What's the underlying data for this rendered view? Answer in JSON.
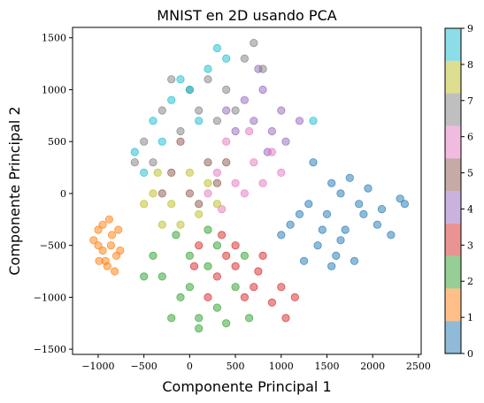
{
  "chart_data": {
    "type": "scatter",
    "title": "MNIST en 2D usando PCA",
    "xlabel": "Componente Principal 1",
    "ylabel": "Componente Principal 2",
    "xlim": [
      -1280,
      2530
    ],
    "ylim": [
      -1550,
      1600
    ],
    "xticks": [
      -1000,
      -500,
      0,
      500,
      1000,
      1500,
      2000,
      2500
    ],
    "yticks": [
      -1500,
      -1000,
      -500,
      0,
      500,
      1000,
      1500
    ],
    "xtick_labels": [
      "−1000",
      "−500",
      "0",
      "500",
      "1000",
      "1500",
      "2000",
      "2500"
    ],
    "ytick_labels": [
      "−1500",
      "−1000",
      "−500",
      "0",
      "500",
      "1000",
      "1500"
    ],
    "grid": false,
    "point_alpha": 0.5,
    "colorbar": {
      "min": 0,
      "max": 9,
      "ticks": [
        "0",
        "1",
        "2",
        "3",
        "4",
        "5",
        "6",
        "7",
        "8",
        "9"
      ],
      "colors": [
        "#1f77b4",
        "#ff7f0e",
        "#2ca02c",
        "#d62728",
        "#9467bd",
        "#8c564b",
        "#e377c2",
        "#7f7f7f",
        "#bcbd22",
        "#17becf"
      ]
    },
    "series": [
      {
        "label_value": 0,
        "color": "#1f77b4",
        "points": [
          [
            1100,
            -300
          ],
          [
            1300,
            -100
          ],
          [
            1500,
            -200
          ],
          [
            1700,
            -350
          ],
          [
            1900,
            -200
          ],
          [
            2100,
            -150
          ],
          [
            2300,
            -50
          ],
          [
            2200,
            -400
          ],
          [
            1600,
            -600
          ],
          [
            1400,
            -500
          ],
          [
            1800,
            -650
          ],
          [
            1250,
            -650
          ],
          [
            1000,
            -400
          ],
          [
            1550,
            100
          ],
          [
            1750,
            150
          ],
          [
            1950,
            50
          ],
          [
            2050,
            -300
          ],
          [
            1650,
            -450
          ],
          [
            1450,
            -350
          ],
          [
            1850,
            -100
          ],
          [
            2350,
            -100
          ],
          [
            1350,
            300
          ],
          [
            1200,
            -200
          ],
          [
            1550,
            -700
          ],
          [
            1650,
            0
          ]
        ]
      },
      {
        "label_value": 1,
        "color": "#ff7f0e",
        "points": [
          [
            -1000,
            -500
          ],
          [
            -950,
            -300
          ],
          [
            -900,
            -700
          ],
          [
            -850,
            -400
          ],
          [
            -800,
            -600
          ],
          [
            -950,
            -550
          ],
          [
            -1050,
            -450
          ],
          [
            -880,
            -250
          ],
          [
            -820,
            -750
          ],
          [
            -920,
            -650
          ],
          [
            -780,
            -350
          ],
          [
            -1000,
            -350
          ],
          [
            -860,
            -500
          ],
          [
            -760,
            -550
          ],
          [
            -990,
            -650
          ]
        ]
      },
      {
        "label_value": 2,
        "color": "#2ca02c",
        "points": [
          [
            -300,
            -800
          ],
          [
            -100,
            -1000
          ],
          [
            100,
            -1200
          ],
          [
            300,
            -1100
          ],
          [
            -200,
            -1200
          ],
          [
            0,
            -900
          ],
          [
            200,
            -700
          ],
          [
            500,
            -900
          ],
          [
            -400,
            -600
          ],
          [
            400,
            -1250
          ],
          [
            650,
            -1200
          ],
          [
            100,
            -1300
          ],
          [
            -500,
            -800
          ],
          [
            300,
            -500
          ],
          [
            0,
            -600
          ],
          [
            600,
            -600
          ],
          [
            -150,
            -400
          ],
          [
            200,
            -350
          ]
        ]
      },
      {
        "label_value": 3,
        "color": "#d62728",
        "points": [
          [
            100,
            -500
          ],
          [
            300,
            -800
          ],
          [
            500,
            -700
          ],
          [
            700,
            -900
          ],
          [
            200,
            -1000
          ],
          [
            400,
            -600
          ],
          [
            600,
            -1000
          ],
          [
            800,
            -600
          ],
          [
            900,
            -1050
          ],
          [
            1000,
            -900
          ],
          [
            1150,
            -1000
          ],
          [
            50,
            -700
          ],
          [
            350,
            -400
          ],
          [
            750,
            -750
          ],
          [
            1050,
            -1200
          ],
          [
            500,
            -500
          ]
        ]
      },
      {
        "label_value": 4,
        "color": "#9467bd",
        "points": [
          [
            600,
            900
          ],
          [
            800,
            1000
          ],
          [
            700,
            700
          ],
          [
            900,
            600
          ],
          [
            1000,
            800
          ],
          [
            500,
            600
          ],
          [
            750,
            1200
          ],
          [
            1050,
            500
          ],
          [
            400,
            800
          ],
          [
            850,
            400
          ],
          [
            1200,
            700
          ]
        ]
      },
      {
        "label_value": 5,
        "color": "#8c564b",
        "points": [
          [
            -200,
            200
          ],
          [
            0,
            0
          ],
          [
            200,
            300
          ],
          [
            -100,
            500
          ],
          [
            300,
            100
          ],
          [
            100,
            -100
          ],
          [
            -300,
            0
          ],
          [
            400,
            300
          ]
        ]
      },
      {
        "label_value": 6,
        "color": "#e377c2",
        "points": [
          [
            300,
            200
          ],
          [
            500,
            100
          ],
          [
            700,
            300
          ],
          [
            400,
            500
          ],
          [
            600,
            0
          ],
          [
            800,
            100
          ],
          [
            200,
            0
          ],
          [
            900,
            400
          ],
          [
            350,
            -150
          ],
          [
            650,
            600
          ],
          [
            1000,
            200
          ]
        ]
      },
      {
        "label_value": 7,
        "color": "#7f7f7f",
        "points": [
          [
            -500,
            500
          ],
          [
            -300,
            800
          ],
          [
            0,
            1000
          ],
          [
            200,
            1100
          ],
          [
            -400,
            300
          ],
          [
            400,
            1000
          ],
          [
            600,
            1300
          ],
          [
            700,
            1450
          ],
          [
            -200,
            1100
          ],
          [
            100,
            800
          ],
          [
            -600,
            300
          ],
          [
            300,
            700
          ],
          [
            500,
            800
          ],
          [
            -100,
            600
          ],
          [
            800,
            1200
          ]
        ]
      },
      {
        "label_value": 8,
        "color": "#bcbd22",
        "points": [
          [
            -400,
            0
          ],
          [
            -200,
            -100
          ],
          [
            0,
            200
          ],
          [
            -300,
            -300
          ],
          [
            100,
            -200
          ],
          [
            -500,
            -100
          ],
          [
            200,
            100
          ],
          [
            -100,
            -300
          ],
          [
            300,
            -100
          ],
          [
            -350,
            200
          ]
        ]
      },
      {
        "label_value": 9,
        "color": "#17becf",
        "points": [
          [
            -600,
            400
          ],
          [
            -400,
            700
          ],
          [
            -200,
            900
          ],
          [
            0,
            1000
          ],
          [
            200,
            1200
          ],
          [
            300,
            1400
          ],
          [
            -500,
            200
          ],
          [
            -300,
            500
          ],
          [
            100,
            700
          ],
          [
            400,
            1300
          ],
          [
            -100,
            1100
          ],
          [
            1350,
            700
          ]
        ]
      }
    ]
  }
}
